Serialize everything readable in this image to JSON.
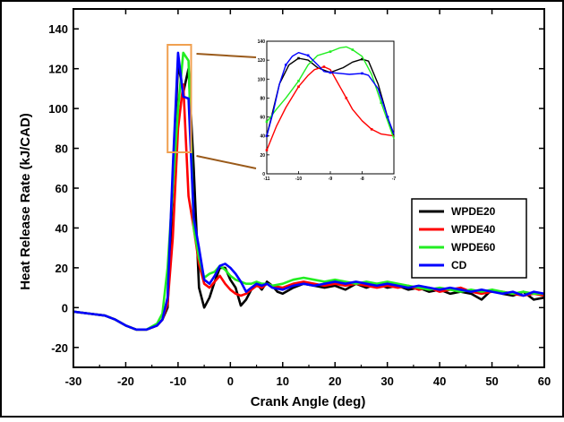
{
  "chart_data": {
    "type": "line",
    "title": "",
    "xlabel": "Crank Angle (deg)",
    "ylabel": "Heat Release Rate (kJ/CAD)",
    "xlim": [
      -30,
      60
    ],
    "ylim": [
      -30,
      150
    ],
    "xticks": [
      -30,
      -20,
      -10,
      0,
      10,
      20,
      30,
      40,
      50,
      60
    ],
    "yticks": [
      -20,
      0,
      20,
      40,
      60,
      80,
      100,
      120,
      140
    ],
    "grid": false,
    "legend_position": "right",
    "series": [
      {
        "name": "WPDE20",
        "color": "#000000",
        "points": [
          [
            -30,
            -2
          ],
          [
            -27,
            -3
          ],
          [
            -24,
            -4
          ],
          [
            -22,
            -6
          ],
          [
            -20,
            -9
          ],
          [
            -18,
            -11
          ],
          [
            -16,
            -11
          ],
          [
            -14,
            -9
          ],
          [
            -13,
            -6
          ],
          [
            -12,
            0
          ],
          [
            -11,
            60
          ],
          [
            -10,
            123
          ],
          [
            -9,
            108
          ],
          [
            -8,
            120
          ],
          [
            -7,
            70
          ],
          [
            -6,
            10
          ],
          [
            -5,
            0
          ],
          [
            -4,
            5
          ],
          [
            -3,
            13
          ],
          [
            -2,
            20
          ],
          [
            -1,
            20
          ],
          [
            0,
            14
          ],
          [
            1,
            10
          ],
          [
            2,
            1
          ],
          [
            3,
            4
          ],
          [
            4,
            9
          ],
          [
            5,
            12
          ],
          [
            6,
            9
          ],
          [
            7,
            13
          ],
          [
            8,
            11
          ],
          [
            9,
            8
          ],
          [
            10,
            7
          ],
          [
            12,
            10
          ],
          [
            14,
            12
          ],
          [
            16,
            11
          ],
          [
            18,
            10
          ],
          [
            20,
            11
          ],
          [
            22,
            9
          ],
          [
            24,
            12
          ],
          [
            26,
            10
          ],
          [
            28,
            12
          ],
          [
            30,
            10
          ],
          [
            32,
            11
          ],
          [
            34,
            9
          ],
          [
            36,
            10
          ],
          [
            38,
            8
          ],
          [
            40,
            9
          ],
          [
            42,
            7
          ],
          [
            44,
            8
          ],
          [
            46,
            7
          ],
          [
            48,
            4
          ],
          [
            50,
            9
          ],
          [
            52,
            7
          ],
          [
            54,
            6
          ],
          [
            56,
            8
          ],
          [
            58,
            4
          ],
          [
            60,
            5
          ]
        ]
      },
      {
        "name": "WPDE40",
        "color": "#ff0000",
        "points": [
          [
            -30,
            -2
          ],
          [
            -27,
            -3
          ],
          [
            -24,
            -4
          ],
          [
            -22,
            -6
          ],
          [
            -20,
            -9
          ],
          [
            -18,
            -11
          ],
          [
            -16,
            -11
          ],
          [
            -14,
            -9
          ],
          [
            -13,
            -6
          ],
          [
            -12,
            2
          ],
          [
            -11,
            35
          ],
          [
            -10,
            90
          ],
          [
            -9,
            112
          ],
          [
            -8,
            56
          ],
          [
            -7,
            40
          ],
          [
            -6,
            22
          ],
          [
            -5,
            12
          ],
          [
            -4,
            10
          ],
          [
            -3,
            13
          ],
          [
            -2,
            16
          ],
          [
            -1,
            12
          ],
          [
            0,
            9
          ],
          [
            1,
            7
          ],
          [
            2,
            6
          ],
          [
            3,
            7
          ],
          [
            4,
            9
          ],
          [
            5,
            11
          ],
          [
            6,
            10
          ],
          [
            7,
            12
          ],
          [
            8,
            11
          ],
          [
            10,
            10
          ],
          [
            12,
            12
          ],
          [
            14,
            13
          ],
          [
            16,
            12
          ],
          [
            18,
            11
          ],
          [
            20,
            12
          ],
          [
            22,
            11
          ],
          [
            24,
            12
          ],
          [
            26,
            11
          ],
          [
            28,
            10
          ],
          [
            30,
            11
          ],
          [
            32,
            10
          ],
          [
            34,
            11
          ],
          [
            36,
            9
          ],
          [
            38,
            10
          ],
          [
            40,
            8
          ],
          [
            42,
            9
          ],
          [
            44,
            10
          ],
          [
            46,
            8
          ],
          [
            48,
            7
          ],
          [
            50,
            8
          ],
          [
            52,
            8
          ],
          [
            54,
            7
          ],
          [
            56,
            6
          ],
          [
            58,
            7
          ],
          [
            60,
            6
          ]
        ]
      },
      {
        "name": "WPDE60",
        "color": "#22ee22",
        "points": [
          [
            -30,
            -2
          ],
          [
            -27,
            -3
          ],
          [
            -24,
            -4
          ],
          [
            -22,
            -6
          ],
          [
            -20,
            -9
          ],
          [
            -18,
            -11
          ],
          [
            -16,
            -11
          ],
          [
            -14,
            -8
          ],
          [
            -13,
            -3
          ],
          [
            -12,
            20
          ],
          [
            -11,
            60
          ],
          [
            -10,
            100
          ],
          [
            -9,
            128
          ],
          [
            -8,
            124
          ],
          [
            -7,
            40
          ],
          [
            -6,
            25
          ],
          [
            -5,
            15
          ],
          [
            -4,
            17
          ],
          [
            -3,
            18
          ],
          [
            -2,
            21
          ],
          [
            -1,
            19
          ],
          [
            0,
            16
          ],
          [
            1,
            14
          ],
          [
            2,
            13
          ],
          [
            3,
            12
          ],
          [
            4,
            12
          ],
          [
            5,
            13
          ],
          [
            6,
            12
          ],
          [
            7,
            12
          ],
          [
            8,
            11
          ],
          [
            10,
            12
          ],
          [
            12,
            14
          ],
          [
            14,
            15
          ],
          [
            16,
            14
          ],
          [
            18,
            13
          ],
          [
            20,
            14
          ],
          [
            22,
            13
          ],
          [
            24,
            12
          ],
          [
            26,
            13
          ],
          [
            28,
            12
          ],
          [
            30,
            13
          ],
          [
            32,
            12
          ],
          [
            34,
            11
          ],
          [
            36,
            10
          ],
          [
            38,
            9
          ],
          [
            40,
            10
          ],
          [
            42,
            9
          ],
          [
            44,
            8
          ],
          [
            46,
            9
          ],
          [
            48,
            8
          ],
          [
            50,
            9
          ],
          [
            52,
            8
          ],
          [
            54,
            7
          ],
          [
            56,
            8
          ],
          [
            58,
            7
          ],
          [
            60,
            7
          ]
        ]
      },
      {
        "name": "CD",
        "color": "#0000ff",
        "points": [
          [
            -30,
            -2
          ],
          [
            -27,
            -3
          ],
          [
            -24,
            -4
          ],
          [
            -22,
            -6
          ],
          [
            -20,
            -9
          ],
          [
            -18,
            -11
          ],
          [
            -16,
            -11
          ],
          [
            -14,
            -9
          ],
          [
            -13,
            -6
          ],
          [
            -12,
            5
          ],
          [
            -11,
            70
          ],
          [
            -10,
            128
          ],
          [
            -9,
            106
          ],
          [
            -8,
            105
          ],
          [
            -7,
            45
          ],
          [
            -6,
            30
          ],
          [
            -5,
            14
          ],
          [
            -4,
            12
          ],
          [
            -3,
            16
          ],
          [
            -2,
            21
          ],
          [
            -1,
            22
          ],
          [
            0,
            20
          ],
          [
            1,
            17
          ],
          [
            2,
            13
          ],
          [
            3,
            8
          ],
          [
            4,
            10
          ],
          [
            5,
            12
          ],
          [
            6,
            11
          ],
          [
            7,
            12
          ],
          [
            8,
            10
          ],
          [
            10,
            9
          ],
          [
            12,
            11
          ],
          [
            14,
            12
          ],
          [
            16,
            11
          ],
          [
            18,
            12
          ],
          [
            20,
            13
          ],
          [
            22,
            12
          ],
          [
            24,
            13
          ],
          [
            26,
            12
          ],
          [
            28,
            11
          ],
          [
            30,
            12
          ],
          [
            32,
            11
          ],
          [
            34,
            10
          ],
          [
            36,
            11
          ],
          [
            38,
            10
          ],
          [
            40,
            9
          ],
          [
            42,
            10
          ],
          [
            44,
            9
          ],
          [
            46,
            8
          ],
          [
            48,
            9
          ],
          [
            50,
            8
          ],
          [
            52,
            7
          ],
          [
            54,
            8
          ],
          [
            56,
            6
          ],
          [
            58,
            8
          ],
          [
            60,
            7
          ]
        ]
      }
    ],
    "inset": {
      "xlim": [
        -11,
        -7
      ],
      "ylim": [
        0,
        140
      ],
      "xticks": [
        -11,
        -10,
        -9,
        -8,
        -7
      ],
      "yticks": [
        0,
        20,
        40,
        60,
        80,
        100,
        120,
        140
      ],
      "zoom_box": {
        "x": [
          -12,
          -7.5
        ],
        "y": [
          78,
          132
        ]
      },
      "series": [
        {
          "name": "WPDE20",
          "color": "#000000",
          "points": [
            [
              -11,
              40
            ],
            [
              -10.6,
              95
            ],
            [
              -10.3,
              115
            ],
            [
              -10,
              122
            ],
            [
              -9.7,
              120
            ],
            [
              -9.4,
              112
            ],
            [
              -9,
              107
            ],
            [
              -8.6,
              112
            ],
            [
              -8.3,
              118
            ],
            [
              -8,
              121
            ],
            [
              -7.8,
              119
            ],
            [
              -7.5,
              95
            ],
            [
              -7.2,
              60
            ],
            [
              -7,
              40
            ]
          ]
        },
        {
          "name": "WPDE40",
          "color": "#ff0000",
          "points": [
            [
              -11,
              25
            ],
            [
              -10.7,
              50
            ],
            [
              -10.4,
              70
            ],
            [
              -10,
              92
            ],
            [
              -9.7,
              104
            ],
            [
              -9.5,
              110
            ],
            [
              -9.2,
              113
            ],
            [
              -9,
              110
            ],
            [
              -8.8,
              98
            ],
            [
              -8.5,
              80
            ],
            [
              -8.3,
              68
            ],
            [
              -8,
              56
            ],
            [
              -7.7,
              47
            ],
            [
              -7.4,
              42
            ],
            [
              -7,
              40
            ]
          ]
        },
        {
          "name": "WPDE60",
          "color": "#22ee22",
          "points": [
            [
              -11,
              55
            ],
            [
              -10.7,
              68
            ],
            [
              -10.4,
              80
            ],
            [
              -10,
              98
            ],
            [
              -9.7,
              115
            ],
            [
              -9.4,
              125
            ],
            [
              -9,
              129
            ],
            [
              -8.7,
              133
            ],
            [
              -8.5,
              134
            ],
            [
              -8.3,
              131
            ],
            [
              -8,
              124
            ],
            [
              -7.7,
              105
            ],
            [
              -7.4,
              75
            ],
            [
              -7,
              37
            ]
          ]
        },
        {
          "name": "CD",
          "color": "#0000ff",
          "points": [
            [
              -11,
              40
            ],
            [
              -10.8,
              65
            ],
            [
              -10.6,
              95
            ],
            [
              -10.4,
              115
            ],
            [
              -10.2,
              124
            ],
            [
              -10,
              128
            ],
            [
              -9.7,
              125
            ],
            [
              -9.4,
              115
            ],
            [
              -9.2,
              108
            ],
            [
              -9,
              107
            ],
            [
              -8.7,
              106
            ],
            [
              -8.4,
              105
            ],
            [
              -8,
              106
            ],
            [
              -7.8,
              104
            ],
            [
              -7.5,
              90
            ],
            [
              -7.2,
              60
            ],
            [
              -7,
              42
            ]
          ]
        }
      ]
    }
  }
}
